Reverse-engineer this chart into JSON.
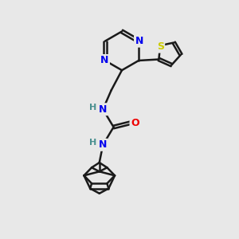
{
  "bg_color": "#e8e8e8",
  "bond_color": "#1a1a1a",
  "bond_width": 1.8,
  "atom_colors": {
    "N": "#0000ee",
    "S": "#cccc00",
    "O": "#ee0000",
    "NH": "#4a9090",
    "H": "#4a9090",
    "C": "#1a1a1a"
  },
  "figsize": [
    3.0,
    3.0
  ],
  "dpi": 100
}
